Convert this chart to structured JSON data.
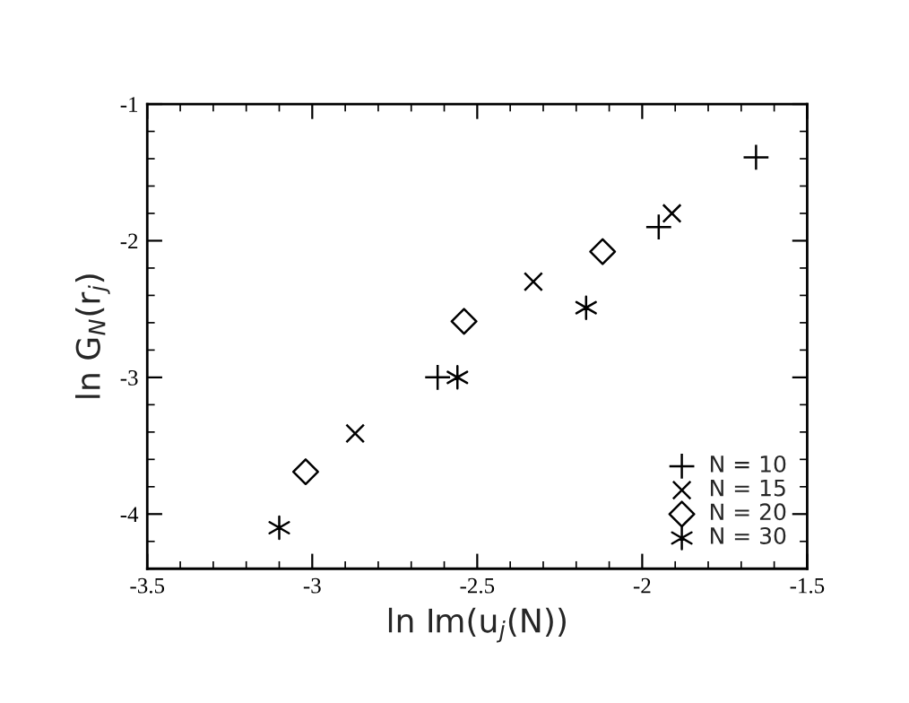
{
  "chart_data": {
    "type": "scatter",
    "xlabel": "ln Im(u$_{j}$(N))",
    "ylabel": "ln G$_{N}$(r$_{j}$)",
    "xlim": [
      -3.5,
      -1.5
    ],
    "xticks": [
      -3.5,
      -3,
      -2.5,
      -2,
      -1.5
    ],
    "ylim": [
      -4.4,
      -1
    ],
    "yticks": [
      -4,
      -3,
      -2,
      -1
    ],
    "grid": false,
    "legend": "bottom right",
    "series": [
      {
        "name": "N = 10",
        "color": "#000000",
        "marker": "cross",
        "x": [
          -1.655,
          -1.95,
          -2.62
        ],
        "values": [
          -1.39,
          -1.9,
          -3.0
        ]
      },
      {
        "name": "N = 15",
        "color": "#000000",
        "x": [
          -1.91,
          -2.33,
          -2.87
        ],
        "values": [
          -1.8,
          -2.3,
          -3.41
        ]
      },
      {
        "name": "N = 20",
        "color": "#000000",
        "marker": "diamond",
        "x": [
          -2.12,
          -2.54,
          -3.02
        ],
        "values": [
          -2.08,
          -2.59,
          -3.69
        ]
      },
      {
        "name": "N = 30",
        "color": "#000000",
        "x": [
          -2.17,
          -2.56,
          -3.1
        ],
        "values": [
          -2.49,
          -3.0,
          -4.1
        ]
      }
    ]
  }
}
